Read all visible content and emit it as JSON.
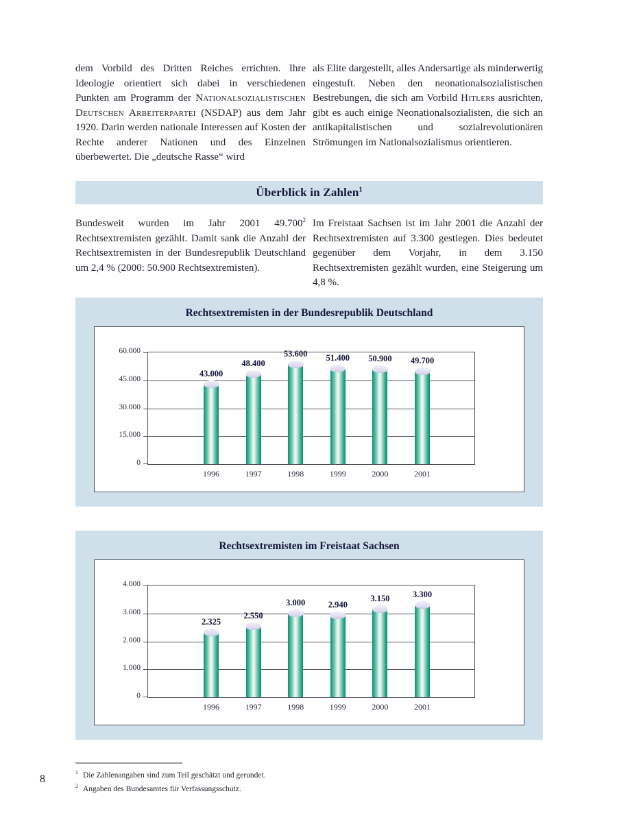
{
  "theme": {
    "card_background": "#cfe0eb",
    "bar_teal": "#0b8f74",
    "bar_cap_lavender": "#ddd9ef",
    "heading_navy": "#15153a",
    "grid_gray": "#55555f"
  },
  "intro": {
    "left_segments": [
      {
        "text": "dem Vorbild des Dritten Reiches errichten. Ihre Ideologie orientiert sich dabei in verschiedenen Punkten am Programm der "
      },
      {
        "text": "Nationalsozialistischen Deutschen Arbeiterpartei",
        "sc": true
      },
      {
        "text": " (NSDAP) aus dem Jahr 1920. Darin werden nationale Interessen auf Kosten der Rechte anderer Nationen und des Einzelnen überbewertet. Die „deutsche Rasse“ wird"
      }
    ],
    "right_segments": [
      {
        "text": "als Elite dargestellt, alles Andersartige als minderwertig eingestuft. Neben den neonationalsozialistischen Bestrebungen, die sich am Vorbild "
      },
      {
        "text": "Hitler",
        "sc": true
      },
      {
        "text": "s ausrichten, gibt es auch einige Neonationalsozialisten, die sich an antikapitalistischen und sozialrevolutionären Strömungen im Nationalsozialismus orientieren."
      }
    ]
  },
  "section": {
    "title": "Überblick in Zahlen",
    "footnote_ref": "1"
  },
  "overview": {
    "left_segments": [
      {
        "text": "Bundesweit wurden im Jahr 2001 49.700"
      },
      {
        "text": "2",
        "sup": true
      },
      {
        "text": " Rechtsextremisten gezählt. Damit sank die Anzahl der Rechtsextremisten in der Bundesrepublik Deutschland um 2,4 % (2000: 50.900 Rechtsextremisten)."
      }
    ],
    "right_segments": [
      {
        "text": "Im Freistaat Sachsen ist im Jahr 2001 die Anzahl der Rechtsextremisten auf 3.300 gestiegen. Dies bedeutet gegenüber dem Vorjahr, in dem 3.150 Rechtsextremisten gezählt wurden, eine Steigerung um 4,8 %."
      }
    ]
  },
  "chart_data": [
    {
      "type": "bar",
      "title": "Rechtsextremisten in der Bundesrepublik Deutschland",
      "categories": [
        "1996",
        "1997",
        "1998",
        "1999",
        "2000",
        "2001"
      ],
      "values": [
        43000,
        48400,
        53600,
        51400,
        50900,
        49700
      ],
      "value_labels": [
        "43.000",
        "48.400",
        "53.600",
        "51.400",
        "50.900",
        "49.700"
      ],
      "xlabel": "",
      "ylabel": "",
      "ylim": [
        0,
        60000
      ],
      "yticks": [
        0,
        15000,
        30000,
        45000,
        60000
      ],
      "ytick_labels": [
        "0",
        "15.000",
        "30.000",
        "45.000",
        "60.000"
      ],
      "grid": true,
      "legend": null
    },
    {
      "type": "bar",
      "title": "Rechtsextremisten im Freistaat Sachsen",
      "categories": [
        "1996",
        "1997",
        "1998",
        "1999",
        "2000",
        "2001"
      ],
      "values": [
        2325,
        2550,
        3000,
        2940,
        3150,
        3300
      ],
      "value_labels": [
        "2.325",
        "2.550",
        "3.000",
        "2.940",
        "3.150",
        "3.300"
      ],
      "xlabel": "",
      "ylabel": "",
      "ylim": [
        0,
        4000
      ],
      "yticks": [
        0,
        1000,
        2000,
        3000,
        4000
      ],
      "ytick_labels": [
        "0",
        "1.000",
        "2.000",
        "3.000",
        "4.000"
      ],
      "grid": true,
      "legend": null
    }
  ],
  "footnotes": [
    {
      "marker": "1",
      "text": "Die Zahlenangaben sind zum Teil geschätzt und gerundet."
    },
    {
      "marker": "2",
      "text": "Angaben des Bundesamtes für Verfassungsschutz."
    }
  ],
  "page": {
    "number": "8"
  }
}
